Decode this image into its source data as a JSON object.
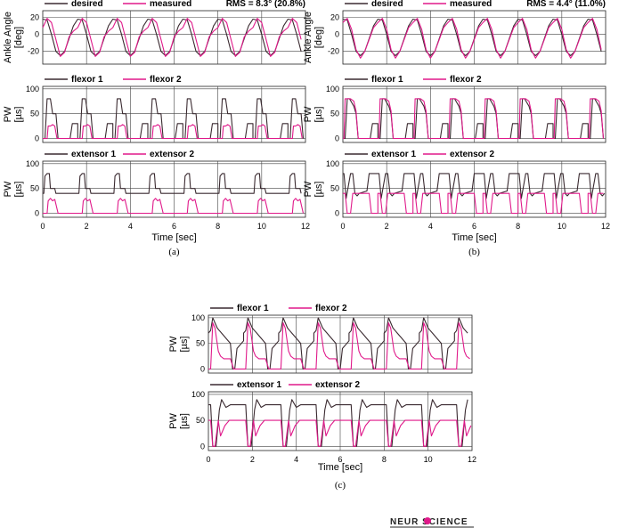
{
  "colors": {
    "dark": "#3a2a30",
    "magenta": "#e0198a"
  },
  "logo": "NEUR SCIENCE",
  "chart_data": [
    {
      "type": "line",
      "caption": "(a)",
      "xlabel": "Time [sec]",
      "xlim": [
        0,
        12
      ],
      "xticks": [
        0,
        2,
        4,
        6,
        8,
        10,
        12
      ],
      "panels": [
        {
          "ylabel": "Ankle Angle [deg]",
          "ylim": [
            -35,
            28
          ],
          "yticks": [
            -20,
            0,
            20
          ],
          "note": "RMS = 8.3° (20.8%)",
          "period": 1.6,
          "series": [
            {
              "name": "desired",
              "color": "dark",
              "x": [
                0,
                0.2,
                0.4,
                0.6,
                0.8,
                1,
                1.2,
                1.4,
                1.6
              ],
              "values": [
                18,
                17,
                0,
                -20,
                -25,
                -20,
                -5,
                10,
                18
              ]
            },
            {
              "name": "measured",
              "color": "magenta",
              "x": [
                0,
                0.2,
                0.4,
                0.6,
                0.8,
                1,
                1.2,
                1.4,
                1.6
              ],
              "values": [
                8,
                19,
                14,
                -6,
                -26,
                -21,
                -3,
                4,
                8
              ]
            }
          ]
        },
        {
          "ylabel": "PW [µs]",
          "ylim": [
            -8,
            105
          ],
          "yticks": [
            0,
            50,
            100
          ],
          "period": 1.6,
          "series": [
            {
              "name": "flexor 1",
              "color": "dark",
              "x": [
                0,
                0.1,
                0.2,
                0.35,
                0.45,
                0.6,
                0.7,
                1.25,
                1.35,
                1.6
              ],
              "values": [
                0,
                0,
                80,
                80,
                50,
                50,
                0,
                0,
                30,
                30
              ]
            },
            {
              "name": "flexor 2",
              "color": "magenta",
              "x": [
                0,
                0.2,
                0.25,
                0.35,
                0.45,
                0.55,
                0.65,
                1.6
              ],
              "values": [
                0,
                0,
                25,
                25,
                28,
                25,
                0,
                0
              ]
            }
          ]
        },
        {
          "ylabel": "PW [µs]",
          "ylim": [
            -8,
            105
          ],
          "yticks": [
            0,
            50,
            100
          ],
          "period": 1.6,
          "series": [
            {
              "name": "extensor 1",
              "color": "dark",
              "x": [
                0,
                0.05,
                0.1,
                0.2,
                0.3,
                0.35,
                0.55,
                0.6,
                0.8,
                1.15,
                1.25,
                1.6
              ],
              "values": [
                40,
                40,
                75,
                80,
                80,
                50,
                50,
                40,
                40,
                40,
                40,
                40
              ]
            },
            {
              "name": "extensor 2",
              "color": "magenta",
              "x": [
                0,
                0.2,
                0.25,
                0.35,
                0.45,
                0.55,
                0.7,
                1.6
              ],
              "values": [
                0,
                0,
                25,
                30,
                25,
                28,
                0,
                0
              ]
            }
          ]
        }
      ]
    },
    {
      "type": "line",
      "caption": "(b)",
      "xlabel": "Time [sec]",
      "xlim": [
        0,
        12
      ],
      "xticks": [
        0,
        2,
        4,
        6,
        8,
        10,
        12
      ],
      "panels": [
        {
          "ylabel": "Ankle Angle [deg]",
          "ylim": [
            -35,
            28
          ],
          "yticks": [
            -20,
            0,
            20
          ],
          "note": "RMS = 4.4° (11.0%)",
          "period": 1.6,
          "series": [
            {
              "name": "desired",
              "color": "dark",
              "x": [
                0,
                0.2,
                0.4,
                0.6,
                0.8,
                1,
                1.2,
                1.4,
                1.6
              ],
              "values": [
                18,
                17,
                0,
                -20,
                -25,
                -20,
                -5,
                10,
                18
              ]
            },
            {
              "name": "measured",
              "color": "magenta",
              "x": [
                0,
                0.2,
                0.4,
                0.6,
                0.8,
                1,
                1.2,
                1.4,
                1.6
              ],
              "values": [
                14,
                19,
                6,
                -18,
                -28,
                -20,
                -6,
                8,
                14
              ]
            }
          ]
        },
        {
          "ylabel": "PW [µs]",
          "ylim": [
            -8,
            105
          ],
          "yticks": [
            0,
            50,
            100
          ],
          "period": 1.6,
          "series": [
            {
              "name": "flexor 1",
              "color": "dark",
              "x": [
                0,
                0.1,
                0.2,
                0.3,
                0.5,
                0.6,
                0.7,
                1.0,
                1.25,
                1.35,
                1.6
              ],
              "values": [
                0,
                0,
                80,
                80,
                65,
                50,
                0,
                0,
                0,
                30,
                30
              ]
            },
            {
              "name": "flexor 2",
              "color": "magenta",
              "x": [
                0,
                0.05,
                0.1,
                0.3,
                0.35,
                0.5,
                0.6,
                0.7,
                1.6
              ],
              "values": [
                0,
                0,
                80,
                80,
                80,
                75,
                55,
                0,
                0
              ]
            }
          ]
        },
        {
          "ylabel": "PW [µs]",
          "ylim": [
            -8,
            105
          ],
          "yticks": [
            0,
            50,
            100
          ],
          "period": 1.6,
          "series": [
            {
              "name": "extensor 1",
              "color": "dark",
              "x": [
                0,
                0.05,
                0.15,
                0.35,
                0.45,
                0.55,
                0.65,
                0.75,
                1.1,
                1.2,
                1.6
              ],
              "values": [
                80,
                80,
                30,
                80,
                80,
                40,
                35,
                40,
                45,
                80,
                80
              ]
            },
            {
              "name": "extensor 2",
              "color": "magenta",
              "x": [
                0,
                0.1,
                0.2,
                0.35,
                0.45,
                0.55,
                0.7,
                0.85,
                1.2,
                1.3,
                1.6
              ],
              "values": [
                40,
                40,
                0,
                0,
                40,
                40,
                40,
                40,
                40,
                0,
                0
              ]
            }
          ]
        }
      ]
    },
    {
      "type": "line",
      "caption": "(c)",
      "xlabel": "Time [sec]",
      "xlim": [
        0,
        12
      ],
      "xticks": [
        0,
        2,
        4,
        6,
        8,
        10,
        12
      ],
      "panels": [
        {
          "ylabel": "PW [µs]",
          "ylim": [
            -8,
            105
          ],
          "yticks": [
            0,
            50,
            100
          ],
          "period": 1.6,
          "series": [
            {
              "name": "flexor 1",
              "color": "dark",
              "x": [
                0,
                0.1,
                0.2,
                0.4,
                0.5,
                0.6,
                0.8,
                1.0,
                1.1,
                1.2,
                1.3,
                1.6
              ],
              "values": [
                70,
                75,
                100,
                80,
                75,
                70,
                60,
                50,
                0,
                0,
                40,
                55
              ]
            },
            {
              "name": "flexor 2",
              "color": "magenta",
              "x": [
                0,
                0.1,
                0.2,
                0.3,
                0.45,
                0.55,
                0.7,
                0.85,
                1.0,
                1.15,
                1.6
              ],
              "values": [
                0,
                0,
                90,
                80,
                35,
                25,
                20,
                20,
                20,
                0,
                0
              ]
            }
          ]
        },
        {
          "ylabel": "PW [µs]",
          "ylim": [
            -8,
            105
          ],
          "yticks": [
            0,
            50,
            100
          ],
          "period": 1.6,
          "series": [
            {
              "name": "extensor 1",
              "color": "dark",
              "x": [
                0,
                0.1,
                0.2,
                0.35,
                0.5,
                0.6,
                0.8,
                1.0,
                1.2,
                1.3,
                1.6
              ],
              "values": [
                80,
                80,
                0,
                0,
                70,
                90,
                75,
                80,
                80,
                80,
                80
              ]
            },
            {
              "name": "extensor 2",
              "color": "magenta",
              "x": [
                0,
                0.1,
                0.2,
                0.3,
                0.45,
                0.55,
                0.75,
                0.95,
                1.1,
                1.2,
                1.6
              ],
              "values": [
                50,
                50,
                0,
                0,
                50,
                20,
                40,
                50,
                50,
                50,
                50
              ]
            }
          ]
        }
      ]
    }
  ]
}
